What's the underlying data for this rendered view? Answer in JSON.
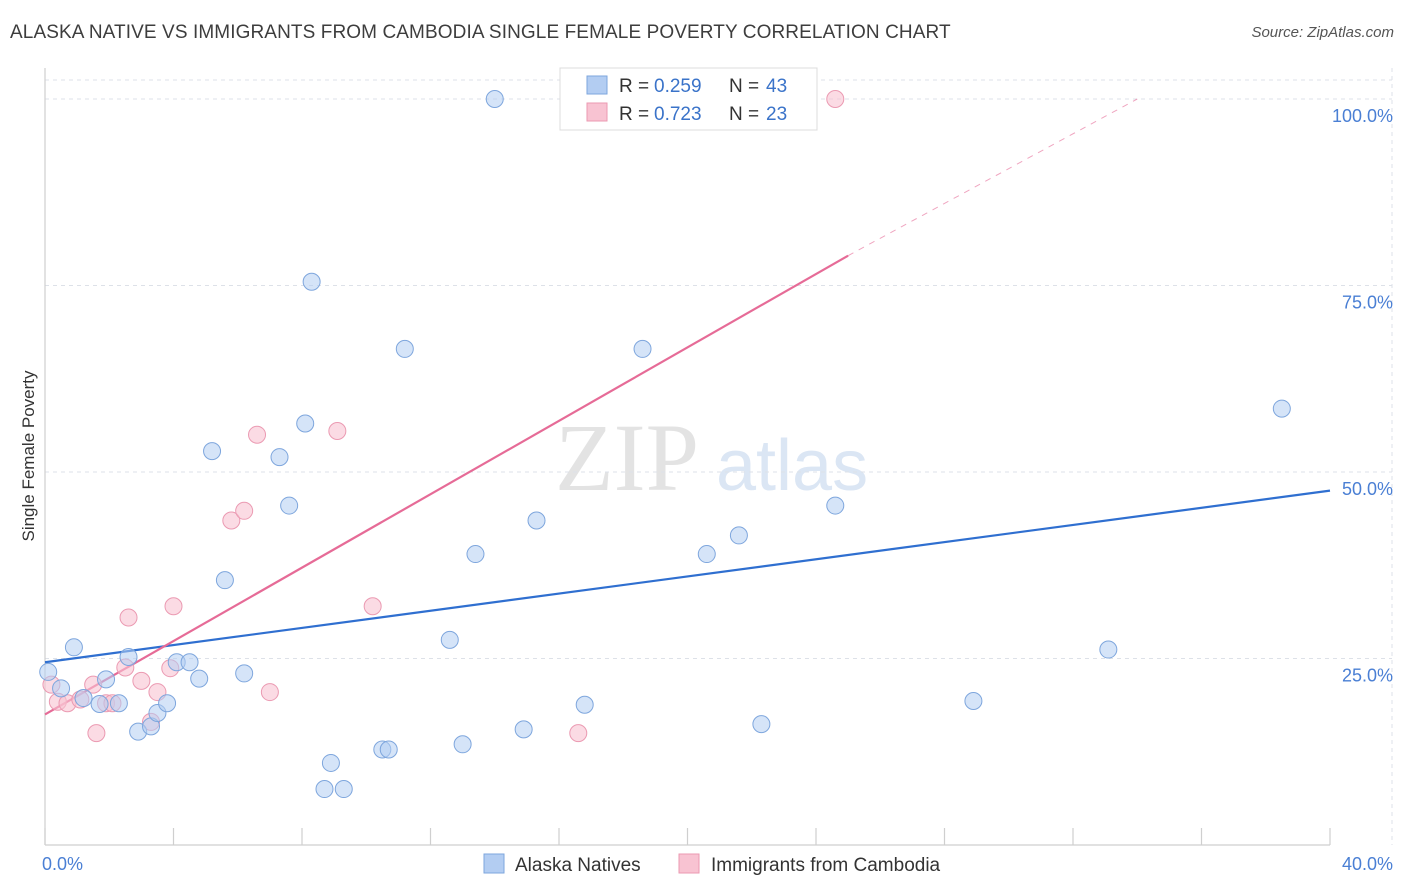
{
  "header": {
    "title": "ALASKA NATIVE VS IMMIGRANTS FROM CAMBODIA SINGLE FEMALE POVERTY CORRELATION CHART",
    "source": "Source: ZipAtlas.com"
  },
  "watermark": {
    "zip": "ZIP",
    "atlas": "atlas"
  },
  "colors": {
    "blue_fill": "#b3cdf2",
    "blue_stroke": "#7ea6dd",
    "blue_line": "#2f6fd0",
    "pink_fill": "#f8c3d2",
    "pink_stroke": "#eb9ab2",
    "pink_line": "#e66b97",
    "tick_text": "#4a7fd4",
    "grid": "#dde1e8"
  },
  "chart_data": {
    "type": "scatter",
    "title": "ALASKA NATIVE VS IMMIGRANTS FROM CAMBODIA SINGLE FEMALE POVERTY CORRELATION CHART",
    "xlabel": "",
    "ylabel": "Single Female Poverty",
    "xlim": [
      0,
      40
    ],
    "ylim": [
      0,
      100
    ],
    "x_tick_labels": [
      "0.0%",
      "40.0%"
    ],
    "y_ticks": [
      25,
      50,
      75,
      100
    ],
    "y_tick_labels": [
      "25.0%",
      "50.0%",
      "75.0%",
      "100.0%"
    ],
    "grid": true,
    "legend": [
      {
        "name": "Alaska Natives",
        "r_label": "R =",
        "r_value": "0.259",
        "n_label": "N =",
        "n_value": "43"
      },
      {
        "name": "Immigrants from Cambodia",
        "r_label": "R =",
        "r_value": "0.723",
        "n_label": "N =",
        "n_value": "23"
      }
    ],
    "series": [
      {
        "name": "Alaska Natives",
        "color": "#b3cdf2",
        "trend": {
          "x0": 0,
          "y0": 24.5,
          "x1": 40,
          "y1": 47.5
        },
        "points": [
          [
            0.1,
            23.2
          ],
          [
            0.5,
            21.0
          ],
          [
            0.9,
            26.5
          ],
          [
            1.2,
            19.7
          ],
          [
            1.7,
            18.9
          ],
          [
            1.9,
            22.2
          ],
          [
            2.3,
            19.0
          ],
          [
            2.6,
            25.2
          ],
          [
            2.9,
            15.2
          ],
          [
            3.3,
            15.9
          ],
          [
            3.5,
            17.7
          ],
          [
            3.8,
            19.0
          ],
          [
            4.1,
            24.5
          ],
          [
            4.5,
            24.5
          ],
          [
            4.8,
            22.3
          ],
          [
            5.2,
            52.8
          ],
          [
            5.6,
            35.5
          ],
          [
            6.2,
            23.0
          ],
          [
            7.3,
            52.0
          ],
          [
            7.6,
            45.5
          ],
          [
            8.1,
            56.5
          ],
          [
            8.3,
            75.5
          ],
          [
            8.7,
            7.5
          ],
          [
            8.9,
            11.0
          ],
          [
            9.3,
            7.5
          ],
          [
            10.5,
            12.8
          ],
          [
            10.7,
            12.8
          ],
          [
            11.2,
            66.5
          ],
          [
            12.6,
            27.5
          ],
          [
            13.0,
            13.5
          ],
          [
            13.4,
            39.0
          ],
          [
            14.0,
            100.0
          ],
          [
            14.9,
            15.5
          ],
          [
            15.3,
            43.5
          ],
          [
            16.8,
            18.8
          ],
          [
            18.6,
            66.5
          ],
          [
            20.6,
            39.0
          ],
          [
            21.6,
            41.5
          ],
          [
            22.3,
            16.2
          ],
          [
            24.6,
            45.5
          ],
          [
            28.9,
            19.3
          ],
          [
            33.1,
            26.2
          ],
          [
            38.5,
            58.5
          ]
        ]
      },
      {
        "name": "Immigrants from Cambodia",
        "color": "#f8c3d2",
        "trend": {
          "x0": 0,
          "y0": 17.5,
          "x1": 25,
          "y1": 79.0,
          "dash_x1": 34,
          "dash_y1": 100.0
        },
        "points": [
          [
            0.2,
            21.5
          ],
          [
            0.4,
            19.2
          ],
          [
            0.7,
            19.0
          ],
          [
            1.1,
            19.5
          ],
          [
            1.5,
            21.5
          ],
          [
            1.6,
            15.0
          ],
          [
            1.9,
            19.0
          ],
          [
            2.1,
            19.0
          ],
          [
            2.5,
            23.8
          ],
          [
            2.6,
            30.5
          ],
          [
            3.0,
            22.0
          ],
          [
            3.3,
            16.5
          ],
          [
            3.5,
            20.5
          ],
          [
            3.9,
            23.7
          ],
          [
            4.0,
            32.0
          ],
          [
            5.8,
            43.5
          ],
          [
            6.2,
            44.8
          ],
          [
            6.6,
            55.0
          ],
          [
            7.0,
            20.5
          ],
          [
            9.1,
            55.5
          ],
          [
            10.2,
            32.0
          ],
          [
            16.6,
            15.0
          ],
          [
            24.6,
            100.0
          ]
        ]
      }
    ]
  }
}
